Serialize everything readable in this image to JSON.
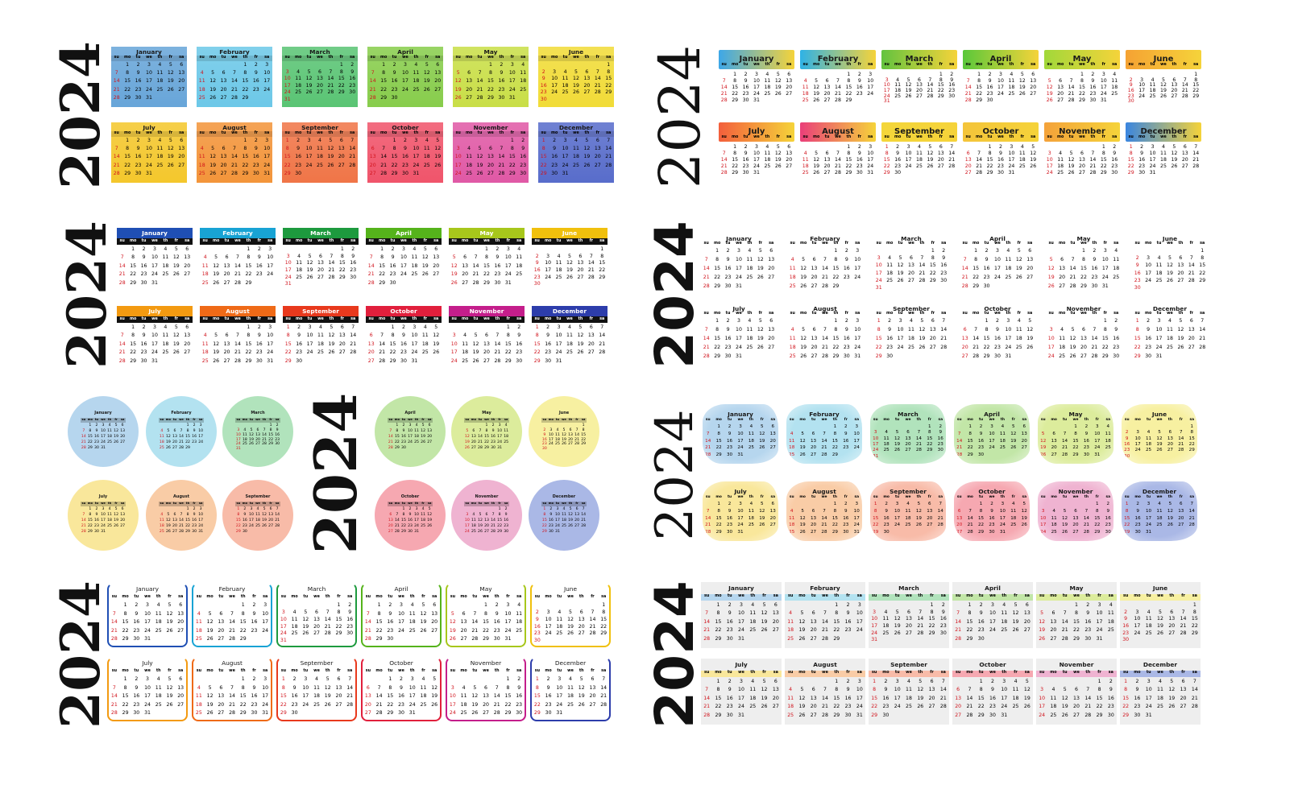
{
  "year": "2024",
  "weekdays": [
    "su",
    "mo",
    "tu",
    "we",
    "th",
    "fr",
    "sa"
  ],
  "months": [
    {
      "name": "January",
      "offset": 1,
      "days": 31
    },
    {
      "name": "February",
      "offset": 4,
      "days": 29
    },
    {
      "name": "March",
      "offset": 5,
      "days": 31
    },
    {
      "name": "April",
      "offset": 1,
      "days": 30
    },
    {
      "name": "May",
      "offset": 3,
      "days": 31
    },
    {
      "name": "June",
      "offset": 6,
      "days": 30
    },
    {
      "name": "July",
      "offset": 1,
      "days": 31
    },
    {
      "name": "August",
      "offset": 4,
      "days": 31
    },
    {
      "name": "September",
      "offset": 0,
      "days": 30
    },
    {
      "name": "October",
      "offset": 2,
      "days": 31
    },
    {
      "name": "November",
      "offset": 5,
      "days": 30
    },
    {
      "name": "December",
      "offset": 0,
      "days": 31
    }
  ],
  "palettes": {
    "classic": [
      "#5d9fd6",
      "#62c4e6",
      "#4ec06a",
      "#7fc93f",
      "#c5dc3a",
      "#f0d929",
      "#f3c31d",
      "#f28d2c",
      "#ef6b3a",
      "#ef4860",
      "#de4d9f",
      "#4c62c7"
    ],
    "pastel": [
      "#b6d6ee",
      "#b3e2f0",
      "#b1e3bc",
      "#c2e6a7",
      "#dcec9c",
      "#f7f0a1",
      "#f9e79b",
      "#f9cca6",
      "#f8bba8",
      "#f6a8b1",
      "#efb3d1",
      "#aab8e6"
    ],
    "gradient": [
      "#3da7e8",
      "#2fb2e6",
      "#63c33f",
      "#5ac83a",
      "#a1d83a",
      "#f5a233",
      "#f35f3c",
      "#ea3f7a",
      "#f4d63a",
      "#f4c43a",
      "#f4a23a",
      "#3a86e0"
    ],
    "header": [
      "#1f4fb4",
      "#18a3d4",
      "#1d9a3e",
      "#55b31b",
      "#a7c71b",
      "#f0c00d",
      "#f39a11",
      "#ef6a17",
      "#e8391d",
      "#e11f3c",
      "#c41e8b",
      "#2d3dab"
    ]
  },
  "variants": [
    {
      "id": "v1",
      "style": "filled",
      "palette": "classic"
    },
    {
      "id": "v2",
      "style": "gradient-header",
      "palette": "gradient"
    },
    {
      "id": "v3",
      "style": "bar-header",
      "palette": "header"
    },
    {
      "id": "v4",
      "style": "plain",
      "palette": "header"
    },
    {
      "id": "v5",
      "style": "circle",
      "palette": "pastel"
    },
    {
      "id": "v6",
      "style": "brush",
      "palette": "pastel"
    },
    {
      "id": "v7",
      "style": "outline",
      "palette": "header"
    },
    {
      "id": "v8",
      "style": "gray-block",
      "palette": "pastel"
    }
  ]
}
